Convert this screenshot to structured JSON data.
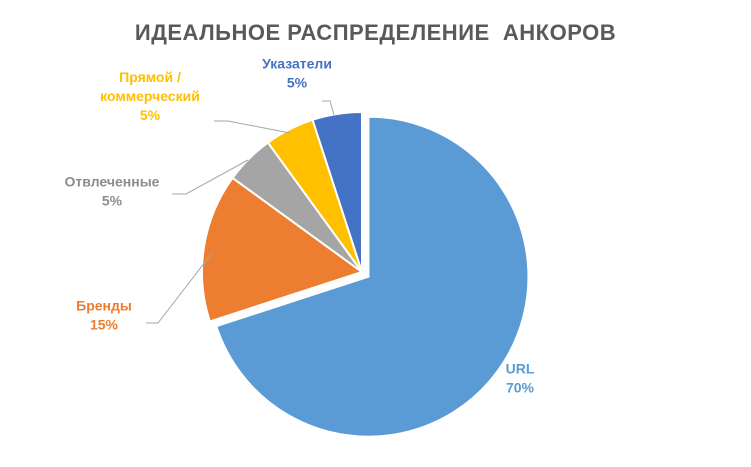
{
  "chart_data": {
    "type": "pie",
    "title": "ИДЕАЛЬНОЕ РАСПРЕДЕЛЕНИЕ  АНКОРОВ",
    "start_angle_deg": 0,
    "direction": "clockwise",
    "slices": [
      {
        "label_lines": [
          "URL"
        ],
        "value_text": "70%",
        "value": 70,
        "color": "#5b9bd5",
        "exploded": true
      },
      {
        "label_lines": [
          "Бренды"
        ],
        "value_text": "15%",
        "value": 15,
        "color": "#ed7d31",
        "exploded": false
      },
      {
        "label_lines": [
          "Отвлеченные"
        ],
        "value_text": "5%",
        "value": 5,
        "color": "#a5a5a5",
        "exploded": false
      },
      {
        "label_lines": [
          "Прямой /",
          "коммерческий"
        ],
        "value_text": "5%",
        "value": 5,
        "color": "#ffc000",
        "exploded": false
      },
      {
        "label_lines": [
          "Указатели"
        ],
        "value_text": "5%",
        "value": 5,
        "color": "#4472c4",
        "exploded": false
      }
    ],
    "legend": "none"
  }
}
